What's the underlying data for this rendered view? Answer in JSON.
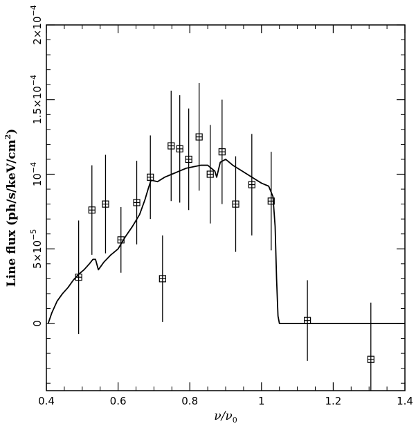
{
  "chart_data": {
    "type": "scatter",
    "title": "",
    "xlabel_main": "ν/ν",
    "xlabel_sub": "0",
    "ylabel": "Line flux (ph/s/keV/cm",
    "ylabel_sup": "2",
    "ylabel_end": ")",
    "xlim": [
      0.4,
      1.4
    ],
    "ylim": [
      -4.5e-05,
      0.0002
    ],
    "grid": false,
    "legend": "none",
    "x_ticks": [
      {
        "value": 0.4,
        "label": "0.4"
      },
      {
        "value": 0.6,
        "label": "0.6"
      },
      {
        "value": 0.8,
        "label": "0.8"
      },
      {
        "value": 1.0,
        "label": "1"
      },
      {
        "value": 1.2,
        "label": "1.2"
      },
      {
        "value": 1.4,
        "label": "1.4"
      }
    ],
    "y_ticks": [
      {
        "value": 0,
        "mant": "0",
        "exp": ""
      },
      {
        "value": 5e-05,
        "mant": "5×10",
        "exp": "−5"
      },
      {
        "value": 0.0001,
        "mant": "10",
        "exp": "−4"
      },
      {
        "value": 0.00015,
        "mant": "1.5×10",
        "exp": "−4"
      },
      {
        "value": 0.0002,
        "mant": "2×10",
        "exp": "−4"
      }
    ],
    "series": [
      {
        "kind": "points_with_errorbars",
        "x": [
          0.49,
          0.527,
          0.565,
          0.608,
          0.652,
          0.69,
          0.724,
          0.748,
          0.772,
          0.797,
          0.826,
          0.857,
          0.89,
          0.928,
          0.973,
          1.027,
          1.128,
          1.305
        ],
        "y": [
          3.1e-05,
          7.6e-05,
          8e-05,
          5.6e-05,
          8.1e-05,
          9.8e-05,
          3e-05,
          0.000119,
          0.000117,
          0.00011,
          0.000125,
          0.0001,
          0.000115,
          8e-05,
          9.3e-05,
          8.2e-05,
          2e-06,
          -2.4e-05
        ],
        "yerr": [
          3.8e-05,
          3e-05,
          3.3e-05,
          2.2e-05,
          2.8e-05,
          2.8e-05,
          2.9e-05,
          3.7e-05,
          3.6e-05,
          3.4e-05,
          3.6e-05,
          3.3e-05,
          3.5e-05,
          3.2e-05,
          3.4e-05,
          3.3e-05,
          2.7e-05,
          3.8e-05
        ]
      },
      {
        "kind": "model_line",
        "x": [
          0.405,
          0.415,
          0.43,
          0.445,
          0.46,
          0.475,
          0.49,
          0.505,
          0.52,
          0.53,
          0.537,
          0.545,
          0.56,
          0.58,
          0.6,
          0.62,
          0.64,
          0.66,
          0.675,
          0.685,
          0.692,
          0.71,
          0.73,
          0.75,
          0.77,
          0.79,
          0.81,
          0.83,
          0.85,
          0.87,
          0.875,
          0.885,
          0.9,
          0.92,
          0.94,
          0.96,
          0.98,
          1.0,
          1.02,
          1.032,
          1.038,
          1.042,
          1.046,
          1.05,
          1.1,
          1.2,
          1.3,
          1.4
        ],
        "y": [
          0,
          7e-06,
          1.5e-05,
          2e-05,
          2.4e-05,
          2.9e-05,
          3.3e-05,
          3.6e-05,
          4e-05,
          4.3e-05,
          4.3e-05,
          3.6e-05,
          4.1e-05,
          4.6e-05,
          5e-05,
          5.8e-05,
          6.5e-05,
          7.3e-05,
          8.3e-05,
          9.1e-05,
          9.6e-05,
          9.5e-05,
          9.8e-05,
          0.0001,
          0.000102,
          0.000104,
          0.000105,
          0.000106,
          0.000106,
          0.000102,
          9.8e-05,
          0.000108,
          0.00011,
          0.000106,
          0.000103,
          0.0001,
          9.7e-05,
          9.4e-05,
          9.2e-05,
          8.5e-05,
          6.5e-05,
          3e-05,
          5e-06,
          0,
          0,
          0,
          0,
          0
        ]
      }
    ]
  }
}
